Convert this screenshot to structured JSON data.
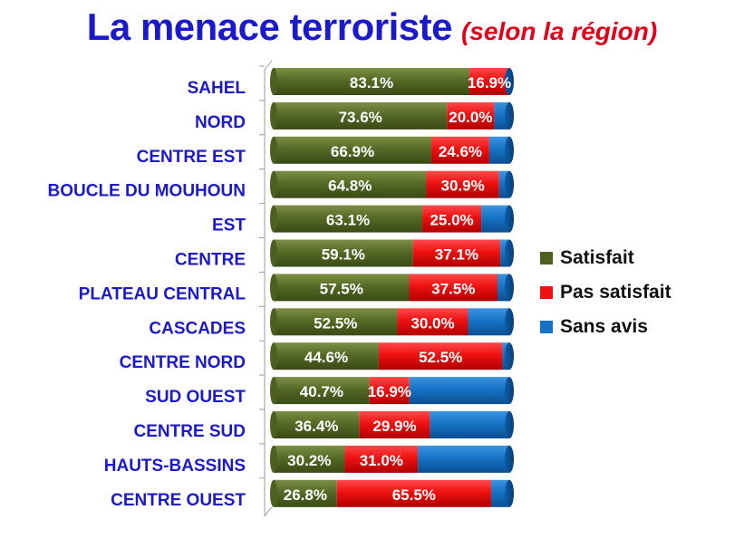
{
  "title": {
    "main": "La  menace terroriste",
    "sub": "(selon la région)"
  },
  "colors": {
    "satisfait": "#4e5f22",
    "pas_satisfait": "#ee1111",
    "sans_avis": "#1673c6",
    "category_label": "#1a1acc"
  },
  "chart_data": {
    "type": "bar",
    "orientation": "horizontal",
    "stacked": true,
    "title": "La  menace terroriste",
    "subtitle": "(selon la région)",
    "categories": [
      "SAHEL",
      "NORD",
      "CENTRE EST",
      "BOUCLE DU MOUHOUN",
      "EST",
      "CENTRE",
      "PLATEAU CENTRAL",
      "CASCADES",
      "CENTRE NORD",
      "SUD OUEST",
      "CENTRE SUD",
      "HAUTS-BASSINS",
      "CENTRE OUEST"
    ],
    "series": [
      {
        "name": "Satisfait",
        "values": [
          83.1,
          73.6,
          66.9,
          64.8,
          63.1,
          59.1,
          57.5,
          52.5,
          44.6,
          40.7,
          36.4,
          30.2,
          26.8
        ],
        "labels": [
          "83.1%",
          "73.6%",
          "66.9%",
          "64.8%",
          "63.1%",
          "59.1%",
          "57.5%",
          "52.5%",
          "44.6%",
          "40.7%",
          "36.4%",
          "30.2%",
          "26.8%"
        ]
      },
      {
        "name": "Pas satisfait",
        "values": [
          16.9,
          20.0,
          24.6,
          30.9,
          25.0,
          37.1,
          37.5,
          30.0,
          52.5,
          16.9,
          29.9,
          31.0,
          65.5
        ],
        "labels": [
          "16.9%",
          "20.0%",
          "24.6%",
          "30.9%",
          "25.0%",
          "37.1%",
          "37.5%",
          "30.0%",
          "52.5%",
          "16.9%",
          "29.9%",
          "31.0%",
          "65.5%"
        ]
      },
      {
        "name": "Sans avis",
        "values": [
          0.0,
          6.4,
          8.5,
          4.3,
          11.9,
          3.8,
          5.0,
          17.5,
          2.9,
          42.4,
          33.7,
          38.8,
          7.7
        ]
      }
    ],
    "xlim": [
      0,
      100
    ],
    "legend_position": "right",
    "grid": false
  }
}
